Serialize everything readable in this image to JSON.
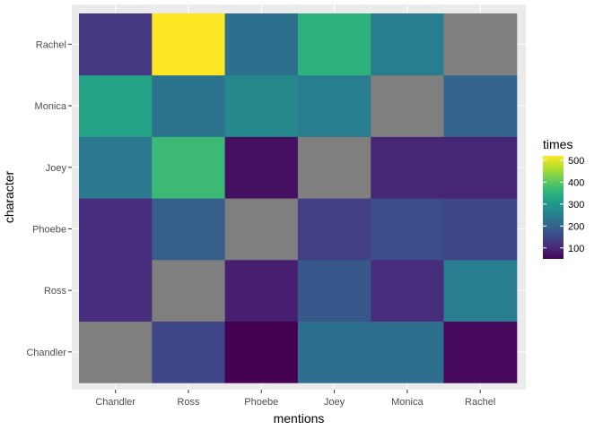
{
  "chart_data": {
    "type": "heatmap",
    "xlabel": "mentions",
    "ylabel": "character",
    "x_categories": [
      "Chandler",
      "Ross",
      "Phoebe",
      "Joey",
      "Monica",
      "Rachel"
    ],
    "y_categories": [
      "Chandler",
      "Ross",
      "Phoebe",
      "Joey",
      "Monica",
      "Rachel"
    ],
    "values": [
      [
        null,
        150,
        50,
        220,
        220,
        60
      ],
      [
        110,
        null,
        90,
        180,
        110,
        250
      ],
      [
        110,
        190,
        null,
        140,
        160,
        150
      ],
      [
        240,
        370,
        70,
        null,
        100,
        100
      ],
      [
        320,
        230,
        270,
        250,
        null,
        200
      ],
      [
        130,
        520,
        220,
        350,
        250,
        null
      ]
    ],
    "missing_color": "#7f7f7f",
    "panel_background": "#ebebeb",
    "grid_color": "#ffffff",
    "legend": {
      "title": "times",
      "position": "right",
      "breaks": [
        100,
        200,
        300,
        400,
        500
      ],
      "limits": [
        50,
        520
      ]
    },
    "colormap": "viridis",
    "viridis_stops": [
      "#440154",
      "#482878",
      "#3e4989",
      "#31688e",
      "#26828e",
      "#1f9e89",
      "#35b779",
      "#6ece58",
      "#b5de2b",
      "#fde725"
    ]
  }
}
